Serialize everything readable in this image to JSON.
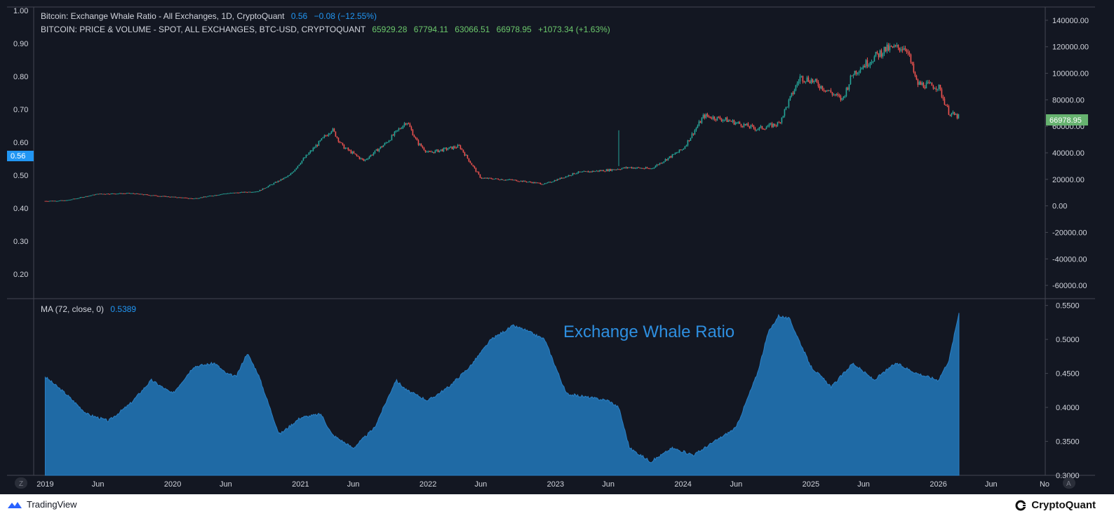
{
  "legend": {
    "main_title": "Bitcoin: Exchange Whale Ratio - All Exchanges, 1D, CryptoQuant",
    "main_value": "0.56",
    "main_change": "−0.08 (−12.55%)",
    "price_title": "BITCOIN: PRICE & VOLUME - SPOT, ALL EXCHANGES, BTC-USD, CRYPTOQUANT",
    "price_o": "65929.28",
    "price_h": "67794.11",
    "price_l": "63066.51",
    "price_c": "66978.95",
    "price_change": "+1073.34 (+1.63%)",
    "ma_title": "MA (72, close, 0)",
    "ma_value": "0.5389"
  },
  "badges": {
    "left_value": "0.56",
    "right_value": "66978.95"
  },
  "annotation": "Exchange Whale Ratio",
  "footer": {
    "tradingview": "TradingView",
    "cryptoquant": "CryptoQuant"
  },
  "buttons": {
    "left": "Z",
    "right": "A"
  },
  "colors": {
    "background": "#131722",
    "panel_line": "#434651",
    "text": "#d1d4dc",
    "blue": "#2196f3",
    "area_fill": "#1f6aa5",
    "up": "#26a69a",
    "down": "#ef5350",
    "price_green": "#6cc96c"
  },
  "chart_data": [
    {
      "type": "line",
      "name": "BTC price (candles)",
      "xlabel": "",
      "ylabel": "",
      "ylim": [
        -70000,
        150000
      ],
      "y_ticks": [
        "140000.00",
        "120000.00",
        "100000.00",
        "80000.00",
        "60000.00",
        "40000.00",
        "20000.00",
        "0.00",
        "-20000.00",
        "-40000.00",
        "-60000.00"
      ],
      "left_ticks": [
        "1.00",
        "0.90",
        "0.80",
        "0.70",
        "0.60",
        "0.50",
        "0.40",
        "0.30",
        "0.20"
      ],
      "x": [
        "2019-01",
        "2019-03",
        "2019-06",
        "2019-09",
        "2019-12",
        "2020-03",
        "2020-06",
        "2020-09",
        "2020-12",
        "2021-01",
        "2021-04",
        "2021-05",
        "2021-07",
        "2021-09",
        "2021-11",
        "2021-12",
        "2022-01",
        "2022-04",
        "2022-06",
        "2022-09",
        "2022-12",
        "2023-03",
        "2023-06",
        "2023-08",
        "2023-10",
        "2024-01",
        "2024-03",
        "2024-05",
        "2024-08",
        "2024-10",
        "2024-12",
        "2025-01",
        "2025-04",
        "2025-05",
        "2025-08",
        "2025-10",
        "2025-11",
        "2026-01",
        "2026-02",
        "2026-03"
      ],
      "values": [
        3700,
        4000,
        9000,
        9500,
        7300,
        5500,
        9400,
        11000,
        23000,
        33000,
        58000,
        45000,
        34000,
        47000,
        64000,
        48000,
        40000,
        45000,
        21000,
        19500,
        16500,
        25000,
        27000,
        29000,
        28000,
        43000,
        68000,
        65000,
        58000,
        62000,
        97000,
        95000,
        80000,
        100000,
        118000,
        120000,
        92000,
        90000,
        70000,
        67000
      ]
    },
    {
      "type": "area",
      "name": "MA (72, close, 0)",
      "xlabel": "",
      "ylabel": "",
      "ylim": [
        0.3,
        0.56
      ],
      "y_ticks": [
        "0.5500",
        "0.5000",
        "0.4500",
        "0.4000",
        "0.3500",
        "0.3000"
      ],
      "x": [
        "2019-01",
        "2019-03",
        "2019-05",
        "2019-07",
        "2019-09",
        "2019-11",
        "2020-01",
        "2020-03",
        "2020-05",
        "2020-06",
        "2020-07",
        "2020-08",
        "2020-09",
        "2020-11",
        "2021-01",
        "2021-03",
        "2021-04",
        "2021-06",
        "2021-08",
        "2021-10",
        "2021-11",
        "2022-01",
        "2022-03",
        "2022-05",
        "2022-07",
        "2022-09",
        "2022-10",
        "2022-12",
        "2023-02",
        "2023-04",
        "2023-06",
        "2023-07",
        "2023-08",
        "2023-10",
        "2023-12",
        "2024-02",
        "2024-04",
        "2024-06",
        "2024-08",
        "2024-09",
        "2024-10",
        "2024-11",
        "2025-01",
        "2025-03",
        "2025-05",
        "2025-07",
        "2025-09",
        "2025-11",
        "2026-01",
        "2026-02",
        "2026-03"
      ],
      "values": [
        0.445,
        0.42,
        0.39,
        0.38,
        0.405,
        0.44,
        0.42,
        0.46,
        0.465,
        0.45,
        0.445,
        0.48,
        0.45,
        0.36,
        0.385,
        0.39,
        0.36,
        0.34,
        0.37,
        0.44,
        0.425,
        0.41,
        0.43,
        0.46,
        0.5,
        0.52,
        0.515,
        0.5,
        0.42,
        0.415,
        0.41,
        0.4,
        0.34,
        0.32,
        0.34,
        0.33,
        0.35,
        0.37,
        0.45,
        0.51,
        0.535,
        0.53,
        0.46,
        0.43,
        0.465,
        0.44,
        0.465,
        0.45,
        0.44,
        0.47,
        0.539
      ],
      "last_value": 0.5389
    }
  ],
  "x_axis_labels": [
    "2019",
    "Jun",
    "2020",
    "Jun",
    "2021",
    "Jun",
    "2022",
    "Jun",
    "2023",
    "Jun",
    "2024",
    "Jun",
    "2025",
    "Jun",
    "2026",
    "Jun",
    "No"
  ]
}
